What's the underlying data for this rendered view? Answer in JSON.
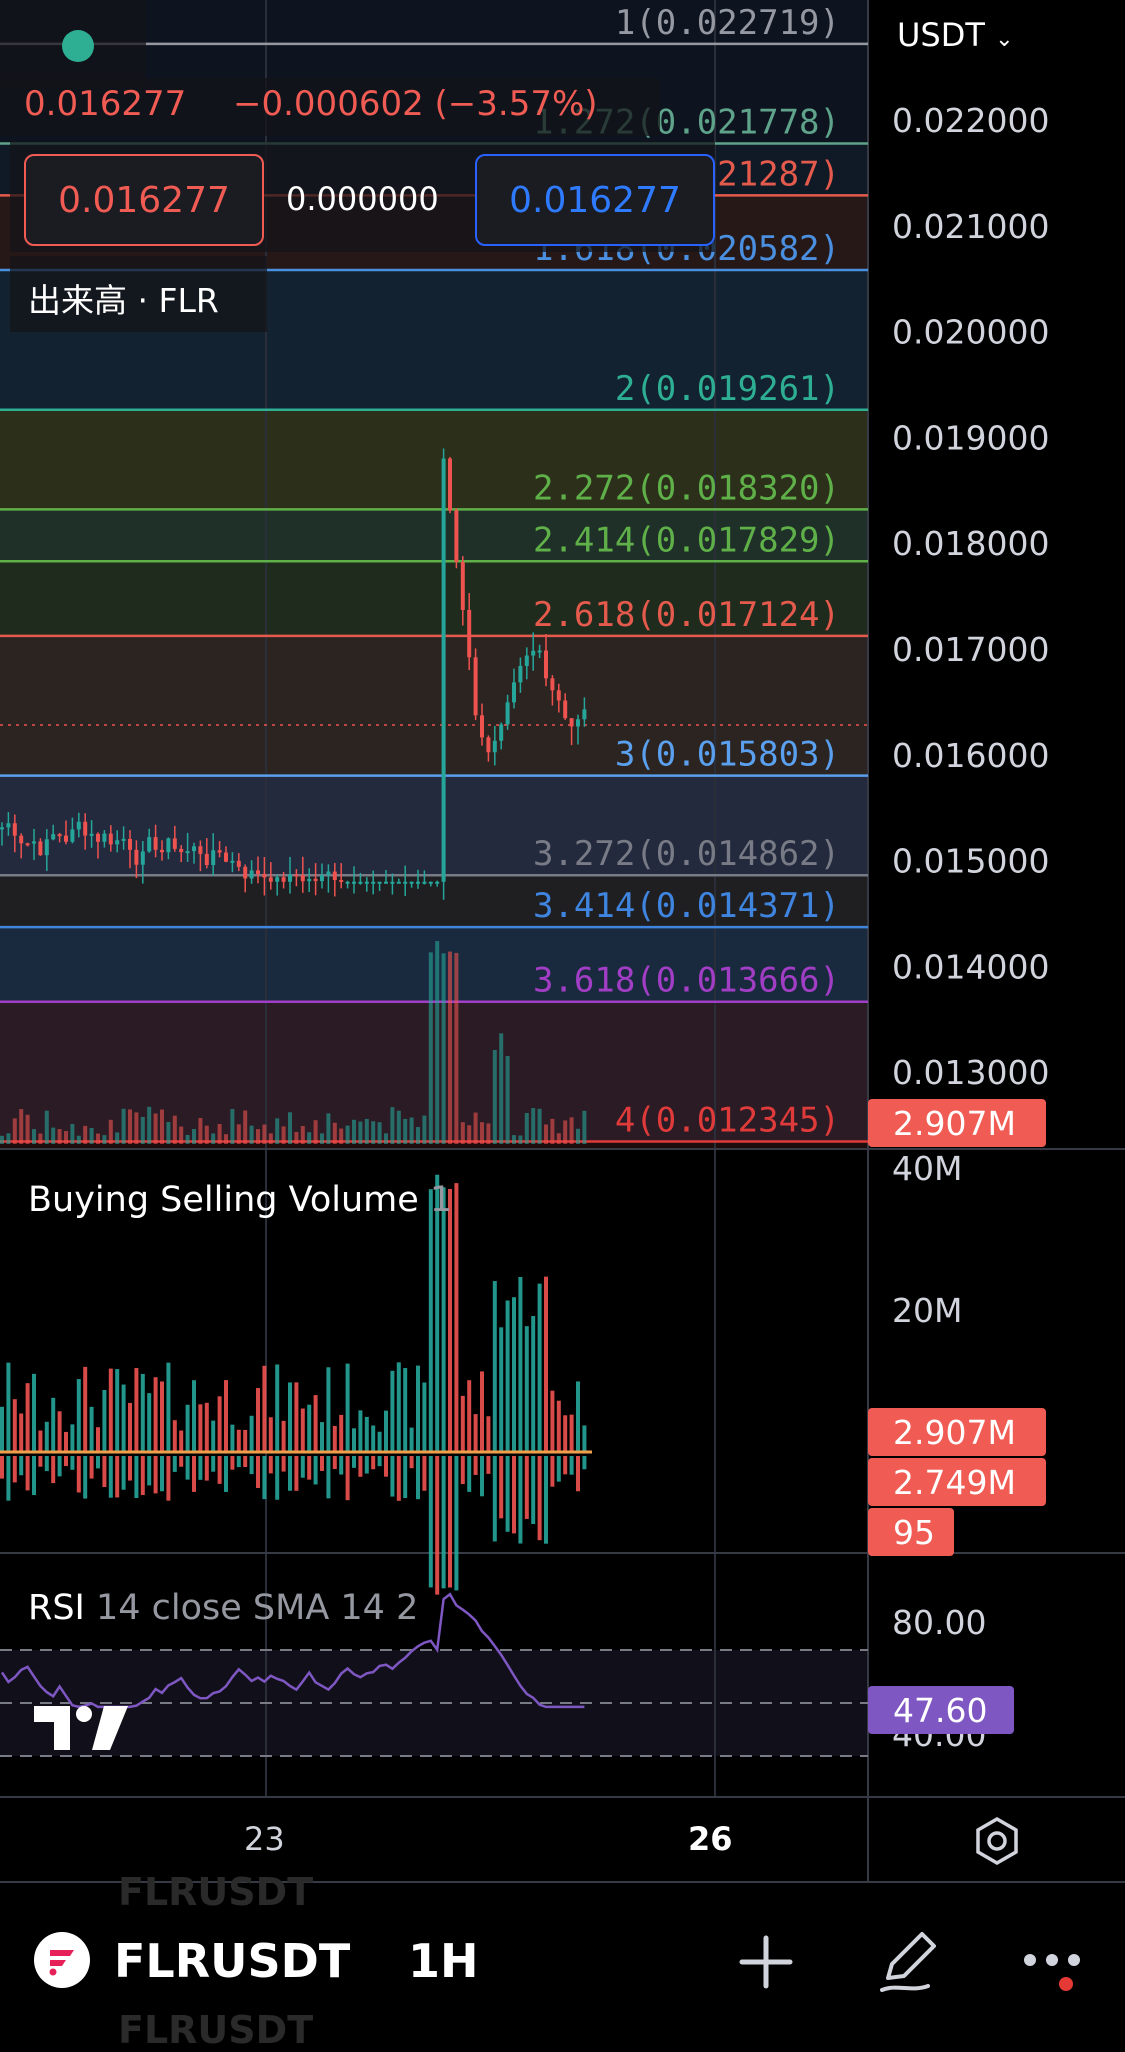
{
  "header": {
    "price": "0.016277",
    "change": "−0.000602 (−3.57%)",
    "sell_price": "0.016277",
    "spread": "0.000000",
    "buy_price": "0.016277",
    "volume_label": "出来高 · FLR"
  },
  "axis_unit": "USDT",
  "axis_unit_icon": "chevron-down-icon",
  "price_ticks": [
    "0.022000",
    "0.021000",
    "0.020000",
    "0.019000",
    "0.018000",
    "0.017000",
    "0.016000",
    "0.015000",
    "0.014000",
    "0.013000"
  ],
  "fib_levels": [
    {
      "label": "1(0.022719)",
      "value": 0.022719,
      "color": "#9598a1",
      "band": "#0d1420"
    },
    {
      "label": "1.272(0.021778)",
      "value": 0.021778,
      "color": "#5fa38a",
      "band": "#101a26"
    },
    {
      "label": "1.414(0.021287)",
      "value": 0.021287,
      "color": "#e45a4c",
      "band": "#261816"
    },
    {
      "label": "1.618(0.020582)",
      "value": 0.020582,
      "color": "#4a8fe0",
      "band": "#122230"
    },
    {
      "label": "2(0.019261)",
      "value": 0.019261,
      "color": "#2eaf94",
      "band": "#2c2f1a"
    },
    {
      "label": "2.272(0.018320)",
      "value": 0.01832,
      "color": "#5fb049",
      "band": "#1e3028"
    },
    {
      "label": "2.414(0.017829)",
      "value": 0.017829,
      "color": "#5fb049",
      "band": "#1f2b1d"
    },
    {
      "label": "2.618(0.017124)",
      "value": 0.017124,
      "color": "#e45a4c",
      "band": "#2b2420"
    },
    {
      "label": "3(0.015803)",
      "value": 0.015803,
      "color": "#5aa0ee",
      "band": "#232a3d"
    },
    {
      "label": "3.272(0.014862)",
      "value": 0.014862,
      "color": "#787b86",
      "band": "#1f1f22"
    },
    {
      "label": "3.414(0.014371)",
      "value": 0.014371,
      "color": "#3f85e0",
      "band": "#1a2a3e"
    },
    {
      "label": "3.618(0.013666)",
      "value": 0.013666,
      "color": "#a23ec5",
      "band": "#2a1b24"
    },
    {
      "label": "4(0.012345)",
      "value": 0.012345,
      "color": "#e03b3b",
      "band": "#1c0c0c"
    }
  ],
  "badges": {
    "volume_main": "2.907M",
    "bsv_1": "2.907M",
    "bsv_2": "2.749M",
    "bsv_3": "95",
    "rsi": "47.60"
  },
  "bsv": {
    "title": "Buying Selling Volume",
    "param": "1",
    "ticks": [
      "40M",
      "20M"
    ]
  },
  "rsi": {
    "title": "RSI",
    "params": "14 close SMA 14 2",
    "ticks": [
      "80.00",
      "40.00"
    ]
  },
  "x_labels": {
    "first": "23",
    "second": "26"
  },
  "bottom": {
    "symbol": "FLRUSDT",
    "interval": "1H",
    "ghost": "FLRUSDT",
    "logo_icon": "flare-logo-icon",
    "add_icon": "plus-icon",
    "draw_icon": "pen-icon",
    "more_icon": "more-icon",
    "settings_icon": "gear-icon"
  },
  "colors": {
    "up": "#26a69a",
    "down": "#ef5350",
    "rsi": "#7e57c2",
    "badge_red": "#f05c54",
    "accent_blue": "#2962ff"
  }
}
